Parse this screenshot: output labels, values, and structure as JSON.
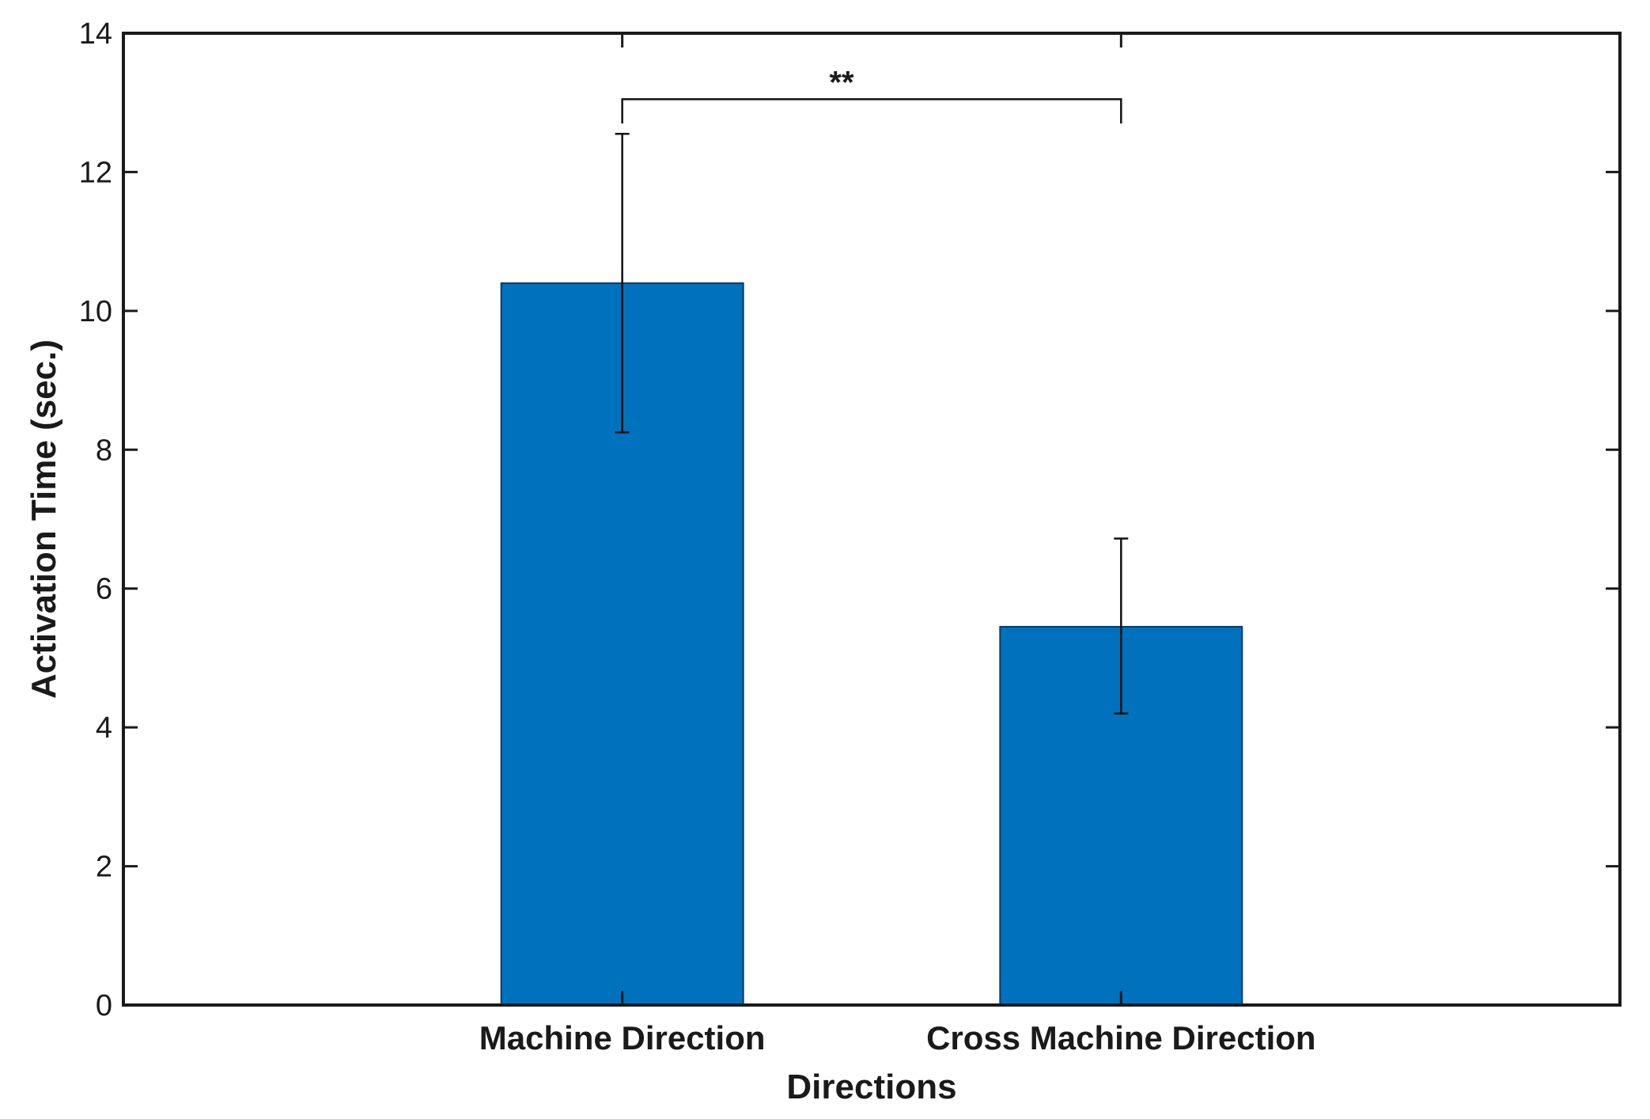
{
  "chart_data": {
    "type": "bar",
    "categories": [
      "Machine Direction",
      "Cross Machine Direction"
    ],
    "values": [
      10.4,
      5.45
    ],
    "error_bars": [
      {
        "low": 8.25,
        "high": 12.55
      },
      {
        "low": 4.2,
        "high": 6.72
      }
    ],
    "xlabel": "Directions",
    "ylabel": "Activation Time (sec.)",
    "ylim": [
      0,
      14
    ],
    "yticks": [
      0,
      2,
      4,
      6,
      8,
      10,
      12,
      14
    ],
    "bar_color": "#0072BD",
    "grid": false,
    "legend": "none",
    "annotation": {
      "label": "**",
      "between": [
        "Machine Direction",
        "Cross Machine Direction"
      ]
    }
  }
}
